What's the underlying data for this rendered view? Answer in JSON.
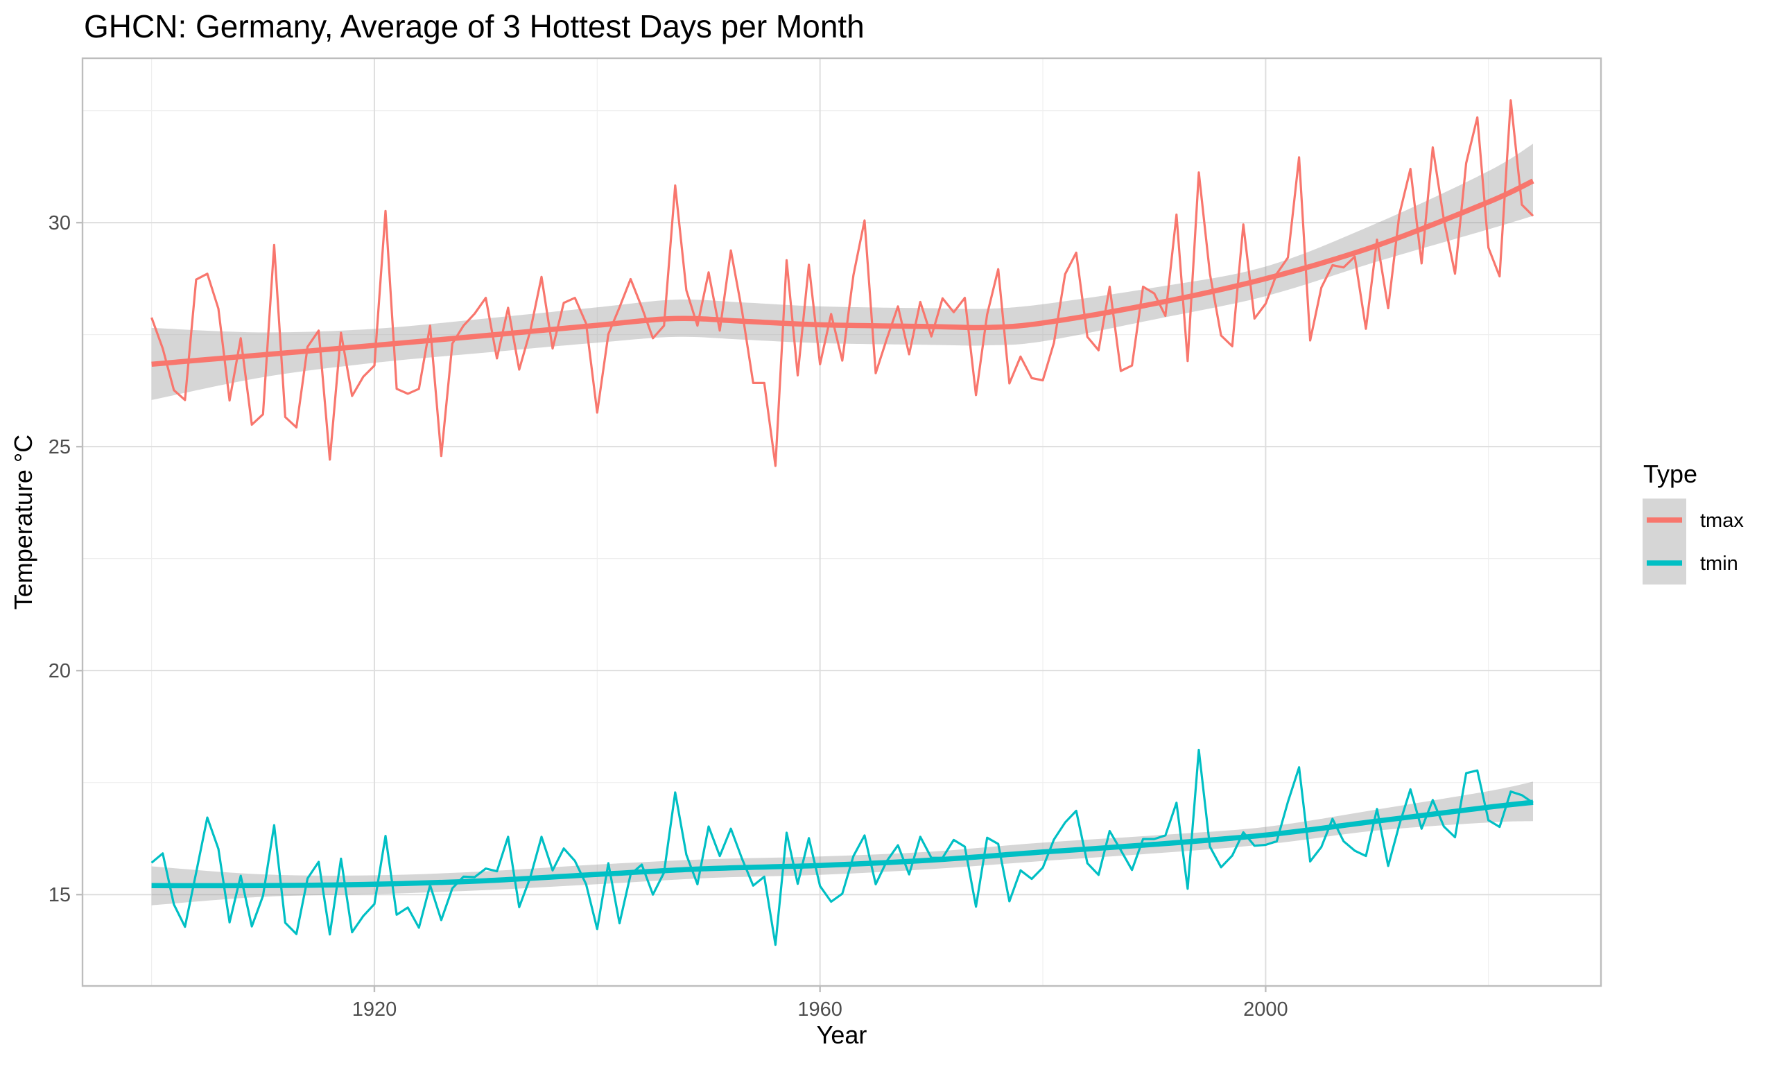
{
  "chart_data": {
    "type": "line",
    "title": "GHCN: Germany, Average of 3 Hottest Days per Month",
    "xlabel": "Year",
    "ylabel": "Temperature °C",
    "xlim": [
      1893.8,
      2030.1
    ],
    "ylim": [
      12.96,
      33.67
    ],
    "x_ticks": [
      1920,
      1960,
      2000
    ],
    "x_minor": [
      1900,
      1940,
      1980,
      2020
    ],
    "y_ticks": [
      15,
      20,
      25,
      30
    ],
    "y_minor": [
      17.5,
      22.5,
      27.5,
      32.5
    ],
    "grid": true,
    "legend": {
      "title": "Type",
      "position": "right",
      "entries": [
        "tmax",
        "tmin"
      ]
    },
    "x_start": 1900,
    "series": [
      {
        "name": "tmax",
        "color": "#F8766D",
        "values": [
          27.88,
          27.19,
          26.26,
          26.04,
          28.73,
          28.86,
          28.08,
          26.03,
          27.42,
          25.49,
          25.72,
          29.5,
          25.66,
          25.43,
          27.23,
          27.59,
          24.71,
          27.54,
          26.13,
          26.56,
          26.81,
          30.26,
          26.29,
          26.18,
          26.29,
          27.7,
          24.79,
          27.3,
          27.7,
          27.97,
          28.32,
          26.97,
          28.1,
          26.72,
          27.59,
          28.79,
          27.19,
          28.21,
          28.32,
          27.75,
          25.76,
          27.51,
          28.11,
          28.74,
          28.11,
          27.42,
          27.7,
          30.83,
          28.49,
          27.7,
          28.89,
          27.59,
          29.38,
          28.03,
          26.42,
          26.42,
          24.57,
          29.16,
          26.59,
          29.06,
          26.84,
          27.96,
          26.92,
          28.83,
          30.05,
          26.64,
          27.41,
          28.13,
          27.06,
          28.23,
          27.46,
          28.31,
          28.0,
          28.32,
          26.15,
          27.95,
          28.96,
          26.41,
          27.01,
          26.53,
          26.48,
          27.32,
          28.85,
          29.33,
          27.45,
          27.15,
          28.57,
          26.69,
          26.81,
          28.57,
          28.42,
          27.92,
          30.18,
          26.91,
          31.12,
          28.86,
          27.48,
          27.24,
          29.96,
          27.86,
          28.19,
          28.86,
          29.22,
          31.46,
          27.37,
          28.55,
          29.05,
          29.0,
          29.24,
          27.63,
          29.62,
          28.09,
          30.18,
          31.2,
          29.09,
          31.68,
          30.07,
          28.86,
          31.33,
          32.35,
          29.44,
          28.8,
          32.73,
          30.4,
          30.15
        ],
        "smooth": {
          "x": [
            1900,
            1910,
            1920,
            1930,
            1940,
            1947,
            1953,
            1960,
            1970,
            1975,
            1980,
            1990,
            2000,
            2010,
            2020,
            2024
          ],
          "y": [
            26.84,
            27.05,
            27.26,
            27.48,
            27.71,
            27.86,
            27.8,
            27.72,
            27.68,
            27.66,
            27.76,
            28.19,
            28.75,
            29.49,
            30.46,
            30.93
          ],
          "upper": [
            27.65,
            27.55,
            27.63,
            27.86,
            28.11,
            28.28,
            28.22,
            28.13,
            28.09,
            28.08,
            28.18,
            28.55,
            29.02,
            29.99,
            31.15,
            31.76
          ],
          "lower": [
            26.04,
            26.55,
            26.87,
            27.1,
            27.32,
            27.45,
            27.39,
            27.31,
            27.27,
            27.26,
            27.35,
            27.84,
            28.36,
            29.13,
            29.85,
            30.15
          ]
        }
      },
      {
        "name": "tmin",
        "color": "#00BFC4",
        "values": [
          15.71,
          15.92,
          14.78,
          14.28,
          15.49,
          16.72,
          16.02,
          14.38,
          15.42,
          14.29,
          14.97,
          16.55,
          14.37,
          14.12,
          15.36,
          15.73,
          14.11,
          15.8,
          14.16,
          14.52,
          14.79,
          16.31,
          14.55,
          14.71,
          14.26,
          15.21,
          14.43,
          15.14,
          15.4,
          15.39,
          15.58,
          15.52,
          16.29,
          14.72,
          15.39,
          16.29,
          15.54,
          16.03,
          15.75,
          15.23,
          14.23,
          15.7,
          14.36,
          15.45,
          15.67,
          15.0,
          15.49,
          17.28,
          15.89,
          15.23,
          16.52,
          15.86,
          16.47,
          15.8,
          15.2,
          15.4,
          13.88,
          16.38,
          15.24,
          16.26,
          15.19,
          14.84,
          15.02,
          15.86,
          16.32,
          15.23,
          15.75,
          16.1,
          15.45,
          16.29,
          15.82,
          15.82,
          16.22,
          16.07,
          14.73,
          16.27,
          16.13,
          14.85,
          15.54,
          15.35,
          15.6,
          16.23,
          16.61,
          16.87,
          15.7,
          15.44,
          16.42,
          15.99,
          15.55,
          16.24,
          16.24,
          16.32,
          17.05,
          15.13,
          18.23,
          16.07,
          15.61,
          15.87,
          16.39,
          16.09,
          16.11,
          16.19,
          17.07,
          17.84,
          15.74,
          16.06,
          16.69,
          16.19,
          15.98,
          15.86,
          16.91,
          15.64,
          16.56,
          17.35,
          16.47,
          17.11,
          16.52,
          16.28,
          17.71,
          17.77,
          16.66,
          16.51,
          17.3,
          17.22,
          17.05
        ],
        "smooth": {
          "x": [
            1900,
            1910,
            1920,
            1930,
            1940,
            1950,
            1960,
            1970,
            1980,
            1990,
            2000,
            2010,
            2020,
            2024
          ],
          "y": [
            15.2,
            15.2,
            15.23,
            15.31,
            15.45,
            15.58,
            15.65,
            15.77,
            15.95,
            16.12,
            16.33,
            16.64,
            16.95,
            17.06
          ],
          "upper": [
            15.63,
            15.45,
            15.43,
            15.52,
            15.67,
            15.79,
            15.85,
            15.96,
            16.16,
            16.32,
            16.51,
            16.9,
            17.31,
            17.52
          ],
          "lower": [
            14.76,
            14.95,
            15.01,
            15.1,
            15.23,
            15.37,
            15.44,
            15.57,
            15.75,
            15.92,
            16.12,
            16.43,
            16.61,
            16.64
          ]
        }
      }
    ]
  }
}
